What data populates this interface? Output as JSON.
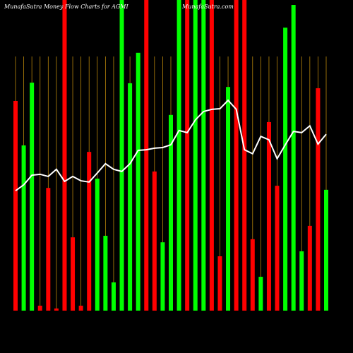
{
  "chart_data": {
    "type": "bar",
    "title": "MunafaSutra  Money  Flow  Charts for AGMI",
    "watermark": "MunafaSutra.com",
    "ylim": [
      0,
      100
    ],
    "grid": true,
    "series": [
      {
        "type": "bar",
        "values": [
          67.5,
          53.2,
          73.4,
          1.6,
          39.5,
          0.7,
          100,
          23.6,
          1.6,
          51.1,
          42.5,
          24.1,
          9.1,
          100,
          73.2,
          83,
          100,
          44.8,
          22,
          63,
          100,
          100,
          100,
          100,
          100,
          17.5,
          72,
          100,
          100,
          23,
          10.9,
          60.7,
          40.2,
          91.1,
          98.4,
          19.1,
          27.3,
          71.6,
          38.9
        ],
        "colors": [
          "#ff0000",
          "#00ff00",
          "#00ff00",
          "#ff0000",
          "#ff0000",
          "#ff0000",
          "#ff0000",
          "#ff0000",
          "#ff0000",
          "#ff0000",
          "#00ff00",
          "#00ff00",
          "#00ff00",
          "#00ff00",
          "#00ff00",
          "#00ff00",
          "#ff0000",
          "#ff0000",
          "#00ff00",
          "#00ff00",
          "#00ff00",
          "#ff0000",
          "#00ff00",
          "#00ff00",
          "#ff0000",
          "#ff0000",
          "#00ff00",
          "#ff0000",
          "#ff0000",
          "#ff0000",
          "#00ff00",
          "#ff0000",
          "#ff0000",
          "#00ff00",
          "#00ff00",
          "#00ff00",
          "#ff0000",
          "#ff0000",
          "#00ff00"
        ]
      },
      {
        "type": "line",
        "color": "#ffffff",
        "values": [
          38.6,
          40.5,
          43.6,
          43.9,
          43.2,
          45.5,
          41.6,
          43.2,
          41.8,
          41.4,
          44.3,
          47.3,
          45.5,
          44.8,
          47.3,
          51.6,
          51.8,
          52.3,
          52.5,
          53.4,
          58,
          57.3,
          61.4,
          64.1,
          64.8,
          65,
          67.7,
          64.8,
          51.8,
          50.5,
          56.1,
          55,
          48.9,
          53.4,
          57.7,
          57.3,
          59.5,
          53.6,
          56.8
        ]
      }
    ]
  }
}
